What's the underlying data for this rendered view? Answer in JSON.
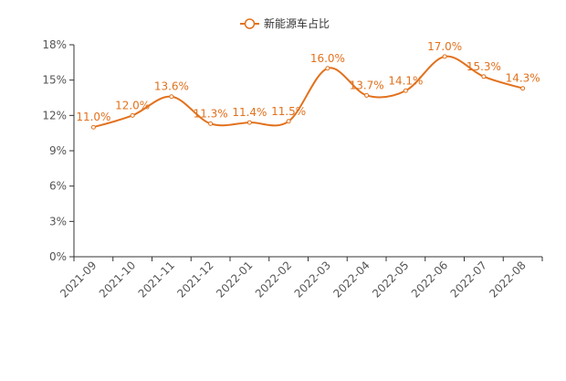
{
  "chart_data": {
    "type": "line",
    "legend": {
      "label": "新能源车占比",
      "position": "top-center"
    },
    "categories": [
      "2021-09",
      "2021-10",
      "2021-11",
      "2021-12",
      "2022-01",
      "2022-02",
      "2022-03",
      "2022-04",
      "2022-05",
      "2022-06",
      "2022-07",
      "2022-08"
    ],
    "series": [
      {
        "name": "新能源车占比",
        "values": [
          11.0,
          12.0,
          13.6,
          11.3,
          11.4,
          11.5,
          16.0,
          13.7,
          14.1,
          17.0,
          15.3,
          14.3
        ],
        "labels": [
          "11.0%",
          "12.0%",
          "13.6%",
          "11.3%",
          "11.4%",
          "11.5%",
          "16.0%",
          "13.7%",
          "14.1%",
          "17.0%",
          "15.3%",
          "14.3%"
        ],
        "color": "#e2711d",
        "smooth": true
      }
    ],
    "ylim": [
      0,
      18
    ],
    "yticks": [
      0,
      3,
      6,
      9,
      12,
      15,
      18
    ],
    "ytick_labels": [
      "0%",
      "3%",
      "6%",
      "9%",
      "12%",
      "15%",
      "18%"
    ],
    "grid": false,
    "axis_color": "#333333"
  }
}
